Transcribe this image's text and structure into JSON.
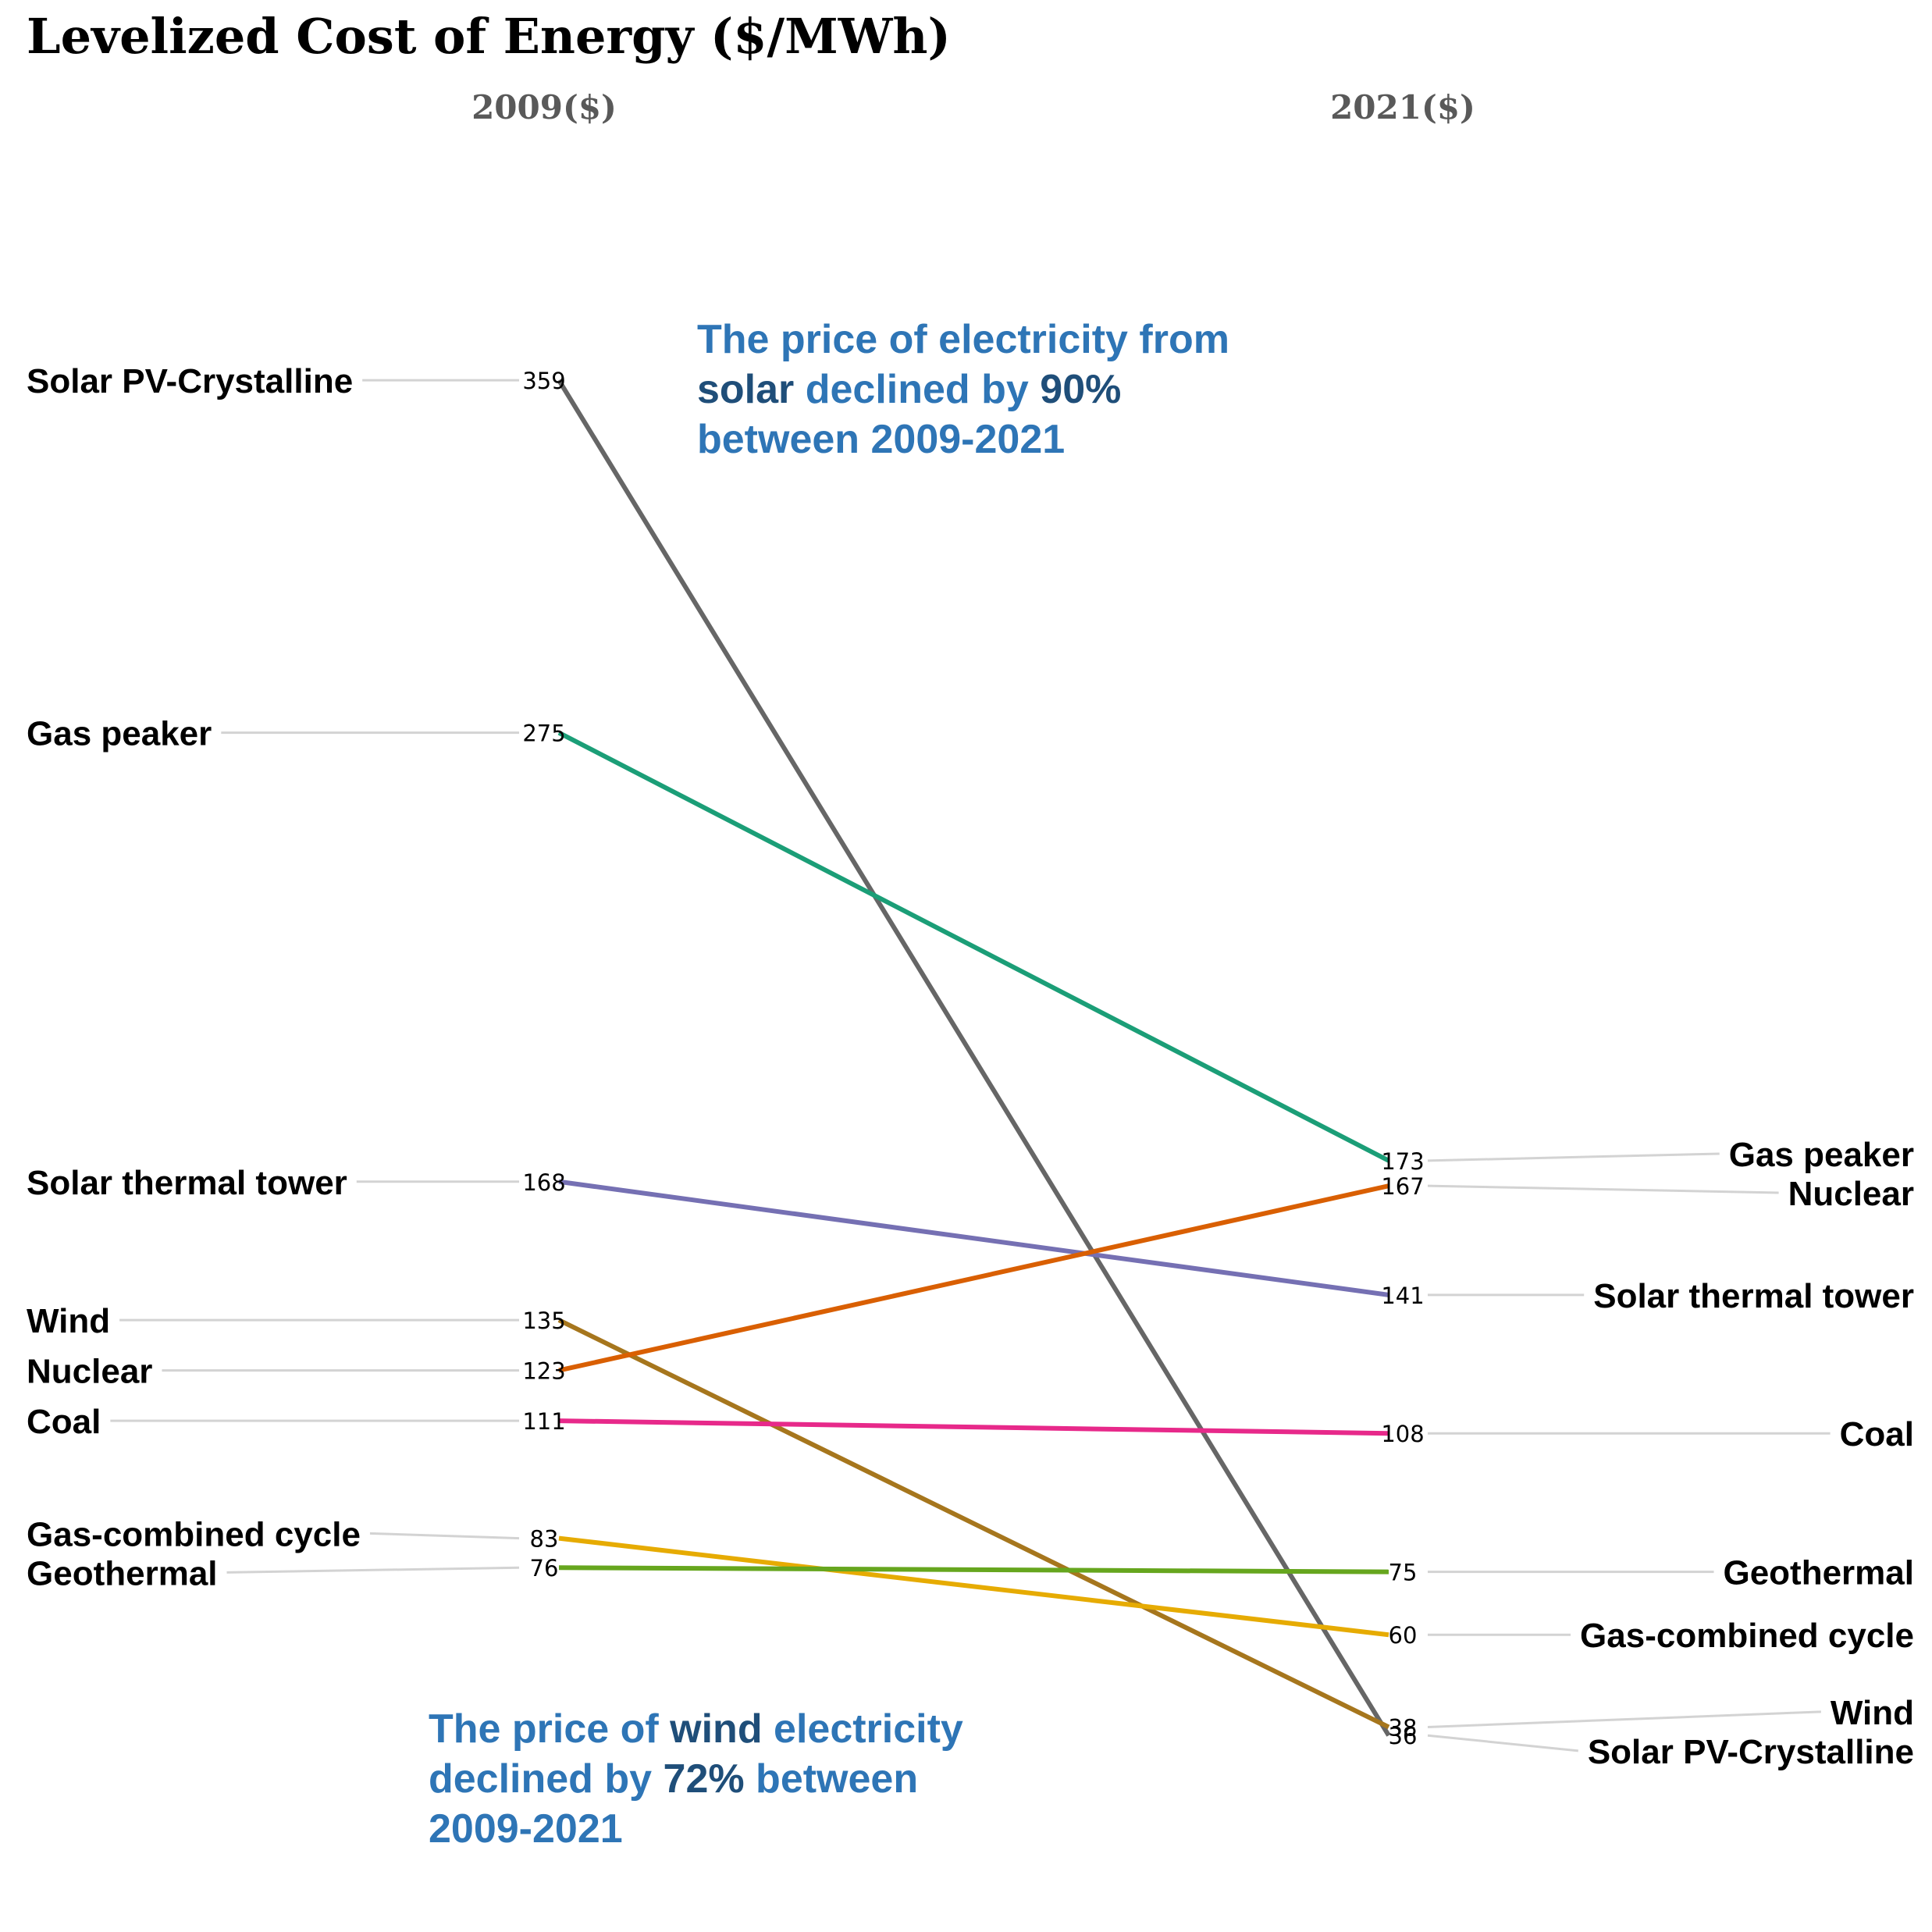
{
  "chart_data": {
    "type": "slope",
    "title": "Levelized Cost of Energy ($/MWh)",
    "columns": [
      "2009($)",
      "2021($)"
    ],
    "ylim": [
      0,
      380
    ],
    "series": [
      {
        "name": "Solar PV-Crystalline",
        "values": [
          359,
          36
        ],
        "color": "#666666"
      },
      {
        "name": "Gas peaker",
        "values": [
          275,
          173
        ],
        "color": "#1b9e77"
      },
      {
        "name": "Solar thermal tower",
        "values": [
          168,
          141
        ],
        "color": "#7570b3"
      },
      {
        "name": "Wind",
        "values": [
          135,
          38
        ],
        "color": "#a6761d"
      },
      {
        "name": "Nuclear",
        "values": [
          123,
          167
        ],
        "color": "#d95f02"
      },
      {
        "name": "Coal",
        "values": [
          111,
          108
        ],
        "color": "#e7298a"
      },
      {
        "name": "Gas-combined cycle",
        "values": [
          83,
          60
        ],
        "color": "#e6ab02"
      },
      {
        "name": "Geothermal",
        "values": [
          76,
          75
        ],
        "color": "#66a61e"
      }
    ],
    "annotations": [
      {
        "name": "solar",
        "lines": [
          [
            {
              "t": "The price of electricity from",
              "s": "light"
            }
          ],
          [
            {
              "t": "solar",
              "s": "dark"
            },
            {
              "t": " declined by ",
              "s": "light"
            },
            {
              "t": "90%",
              "s": "dark"
            }
          ],
          [
            {
              "t": "between 2009-2021",
              "s": "light"
            }
          ]
        ]
      },
      {
        "name": "wind",
        "lines": [
          [
            {
              "t": "The price of ",
              "s": "light"
            },
            {
              "t": "wind",
              "s": "dark"
            },
            {
              "t": " electricity",
              "s": "light"
            }
          ],
          [
            {
              "t": "declined by ",
              "s": "light"
            },
            {
              "t": "72%",
              "s": "dark"
            },
            {
              "t": " between",
              "s": "light"
            }
          ],
          [
            {
              "t": "2009-2021",
              "s": "light"
            }
          ]
        ]
      }
    ]
  }
}
